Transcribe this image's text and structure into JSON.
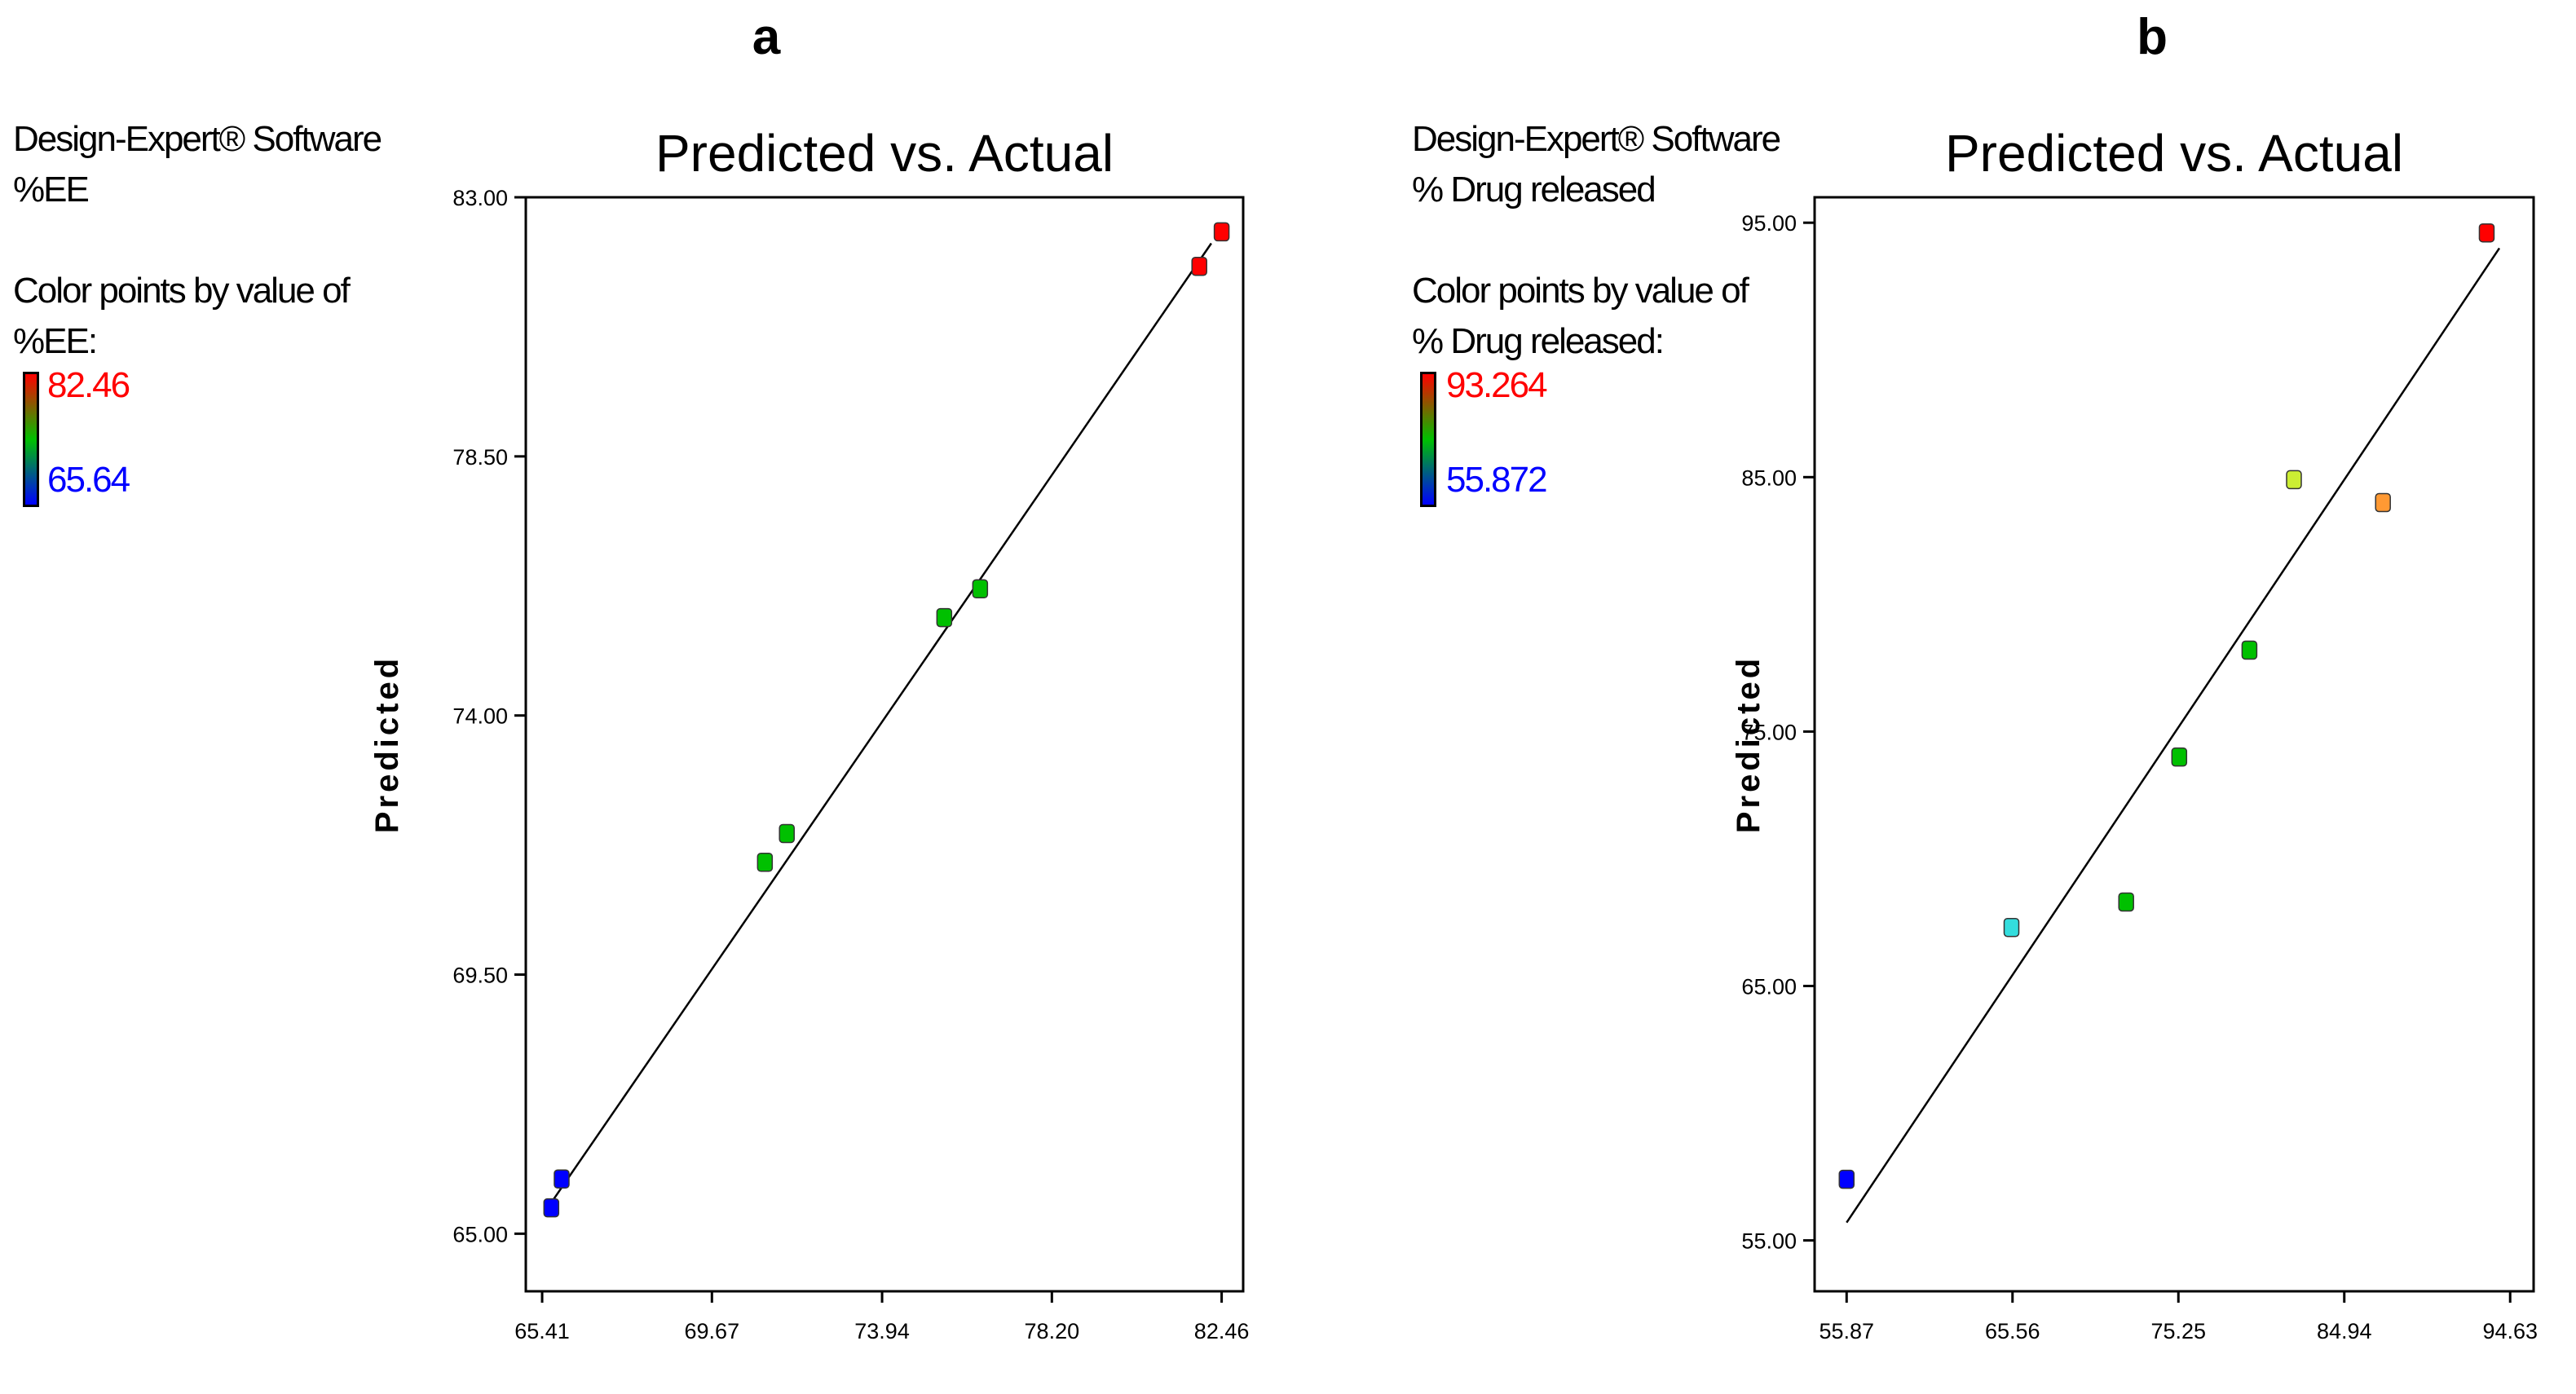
{
  "chart_data": [
    {
      "panel_label": "a",
      "type": "scatter",
      "title": "Predicted vs. Actual",
      "xlabel": "",
      "ylabel": "Predicted",
      "xlim": [
        65.0,
        83.0
      ],
      "ylim": [
        64.0,
        83.0
      ],
      "xticks": [
        "65.41",
        "69.67",
        "73.94",
        "78.20",
        "82.46"
      ],
      "yticks": [
        "65.00",
        "69.50",
        "74.00",
        "78.50",
        "83.00"
      ],
      "info": {
        "software": "Design-Expert® Software",
        "response": "%EE",
        "color_by_line1": "Color points by value of",
        "color_by_line2": "%EE:",
        "legend_max": "82.46",
        "legend_min": "65.64"
      },
      "fit_line": [
        [
          65.6,
          65.5
        ],
        [
          82.2,
          82.2
        ]
      ],
      "points": [
        {
          "x": 65.64,
          "y": 65.45,
          "color": "#0000ff"
        },
        {
          "x": 65.9,
          "y": 65.95,
          "color": "#0000ff"
        },
        {
          "x": 71.0,
          "y": 71.45,
          "color": "#00c000"
        },
        {
          "x": 71.55,
          "y": 71.95,
          "color": "#00c000"
        },
        {
          "x": 75.5,
          "y": 75.7,
          "color": "#00c000"
        },
        {
          "x": 76.4,
          "y": 76.2,
          "color": "#00c000"
        },
        {
          "x": 81.9,
          "y": 81.8,
          "color": "#ff0000"
        },
        {
          "x": 82.46,
          "y": 82.4,
          "color": "#ff0000"
        }
      ]
    },
    {
      "panel_label": "b",
      "type": "scatter",
      "title": "Predicted vs. Actual",
      "xlabel": "",
      "ylabel": "Predicted",
      "xlim": [
        54.0,
        96.0
      ],
      "ylim": [
        53.0,
        96.0
      ],
      "xticks": [
        "55.87",
        "65.56",
        "75.25",
        "84.94",
        "94.63"
      ],
      "yticks": [
        "55.00",
        "65.00",
        "75.00",
        "85.00",
        "95.00"
      ],
      "info": {
        "software": "Design-Expert® Software",
        "response": "% Drug released",
        "color_by_line1": "Color points by value of",
        "color_by_line2": "% Drug released:",
        "legend_max": "93.264",
        "legend_min": "55.872"
      },
      "fit_line": [
        [
          55.87,
          55.7
        ],
        [
          94.0,
          94.0
        ]
      ],
      "points": [
        {
          "x": 55.87,
          "y": 57.4,
          "color": "#0000ff"
        },
        {
          "x": 65.5,
          "y": 67.3,
          "color": "#33dddd"
        },
        {
          "x": 72.2,
          "y": 68.3,
          "color": "#00c000"
        },
        {
          "x": 75.3,
          "y": 74.0,
          "color": "#00c000"
        },
        {
          "x": 79.4,
          "y": 78.2,
          "color": "#00c000"
        },
        {
          "x": 82.0,
          "y": 84.9,
          "color": "#ccee33"
        },
        {
          "x": 87.2,
          "y": 84.0,
          "color": "#ff9933"
        },
        {
          "x": 93.26,
          "y": 94.6,
          "color": "#ff0000"
        }
      ]
    }
  ]
}
